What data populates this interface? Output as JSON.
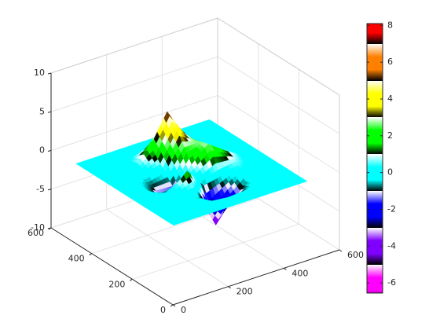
{
  "chart_data": {
    "type": "surface",
    "x": [
      10,
      70,
      130,
      190,
      250,
      310,
      370,
      430,
      490
    ],
    "y": [
      10,
      70,
      130,
      190,
      250,
      310,
      370,
      430,
      490
    ],
    "z": [
      [
        0,
        0,
        0,
        0,
        0,
        0,
        0,
        0,
        0
      ],
      [
        0,
        0,
        0.003,
        -0.03,
        -0.24,
        -0.11,
        -0.005,
        0,
        0
      ],
      [
        0,
        0,
        0.05,
        -0.59,
        -4.76,
        -2.1,
        -0.06,
        0,
        0
      ],
      [
        0,
        -0.009,
        -0.13,
        1.86,
        -0.72,
        -0.27,
        0.5,
        0.013,
        0
      ],
      [
        0,
        -0.036,
        -1.33,
        -1.65,
        0.98,
        2.94,
        1.41,
        0.033,
        0
      ],
      [
        0,
        -0.014,
        -0.48,
        0.23,
        3.69,
        2.43,
        0.58,
        0.012,
        0
      ],
      [
        0,
        0,
        0.08,
        2.1,
        5.86,
        2.21,
        0.13,
        0,
        0
      ],
      [
        0,
        0,
        0.005,
        0.11,
        0.3,
        0.11,
        0.006,
        0,
        0
      ],
      [
        0,
        0,
        0,
        0,
        0,
        0,
        0,
        0,
        0
      ]
    ],
    "xlim": [
      0,
      600
    ],
    "ylim": [
      0,
      600
    ],
    "zlim": [
      -10,
      10
    ],
    "xticks": [
      0,
      200,
      400,
      600
    ],
    "yticks": [
      0,
      200,
      400,
      600
    ],
    "zticks": [
      -10,
      -5,
      0,
      5,
      10
    ],
    "grid": true,
    "clim": [
      -6.55,
      8.1
    ],
    "cticks": [
      -6,
      -4,
      -2,
      0,
      2,
      4,
      6,
      8
    ],
    "colormap": [
      "#ff00ff",
      "#8000ff",
      "#0000ff",
      "#00ffff",
      "#00ff00",
      "#ffff00",
      "#ff8000",
      "#ff0000"
    ]
  }
}
